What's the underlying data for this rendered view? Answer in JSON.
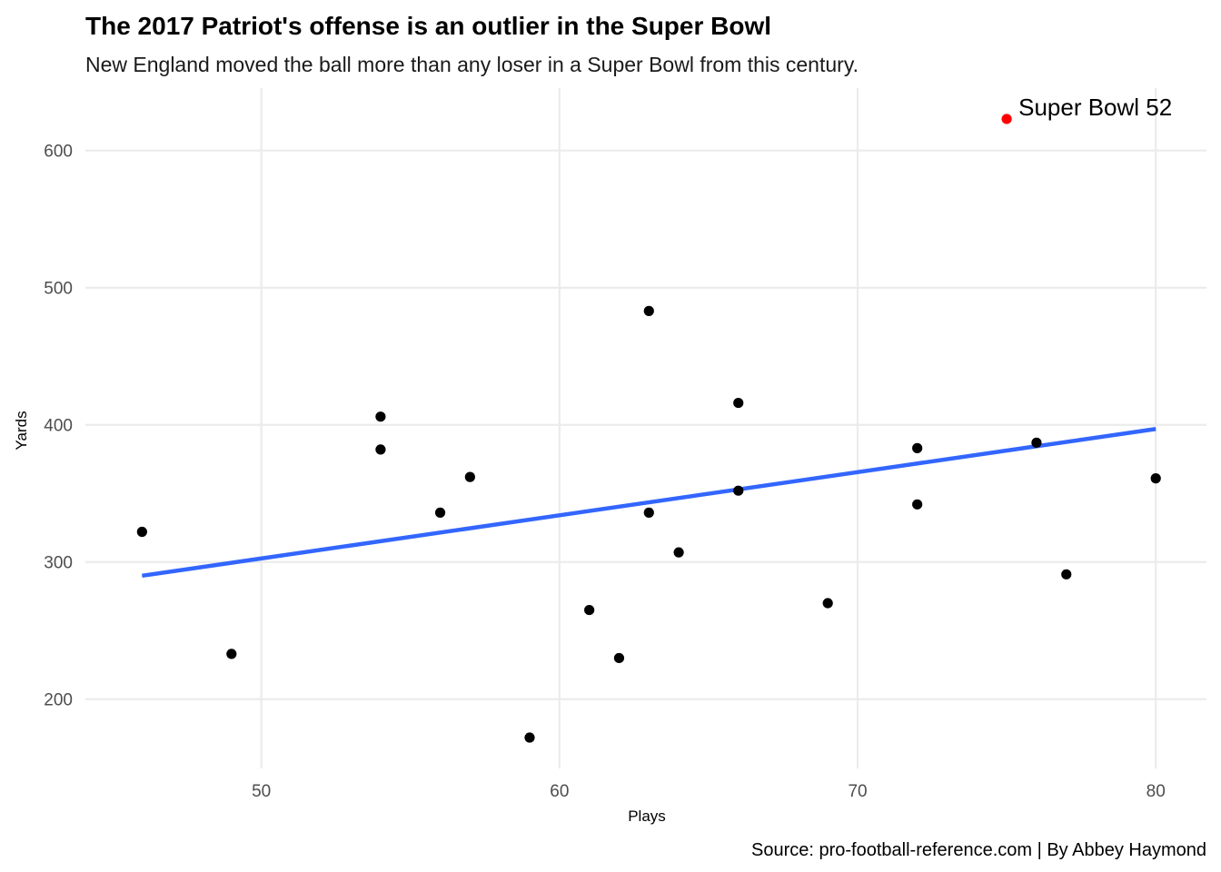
{
  "chart_data": {
    "type": "scatter",
    "title": "The 2017 Patriot's offense is an outlier in the Super Bowl",
    "subtitle": "New England moved the ball more than any loser in a Super Bowl from this century.",
    "xlabel": "Plays",
    "ylabel": "Yards",
    "caption": "Source: pro-football-reference.com | By Abbey Haymond",
    "xlim": [
      44.1,
      81.7
    ],
    "ylim": [
      149.5,
      645.5
    ],
    "x_ticks": [
      50,
      60,
      70,
      80
    ],
    "y_ticks": [
      200,
      300,
      400,
      500,
      600
    ],
    "grid": true,
    "colors": {
      "points": "#000000",
      "highlight": "#ff0000",
      "trend": "#3366ff",
      "grid": "#ebebeb"
    },
    "points": [
      {
        "x": 46,
        "y": 322
      },
      {
        "x": 49,
        "y": 233
      },
      {
        "x": 54,
        "y": 406
      },
      {
        "x": 54,
        "y": 382
      },
      {
        "x": 56,
        "y": 336
      },
      {
        "x": 57,
        "y": 362
      },
      {
        "x": 59,
        "y": 172
      },
      {
        "x": 61,
        "y": 265
      },
      {
        "x": 62,
        "y": 230
      },
      {
        "x": 63,
        "y": 483
      },
      {
        "x": 63,
        "y": 336
      },
      {
        "x": 64,
        "y": 307
      },
      {
        "x": 66,
        "y": 416
      },
      {
        "x": 66,
        "y": 352
      },
      {
        "x": 69,
        "y": 270
      },
      {
        "x": 72,
        "y": 383
      },
      {
        "x": 72,
        "y": 342
      },
      {
        "x": 76,
        "y": 387
      },
      {
        "x": 77,
        "y": 291
      },
      {
        "x": 80,
        "y": 361
      }
    ],
    "highlight": {
      "x": 75,
      "y": 623,
      "label": "Super Bowl 52"
    },
    "trend_line": {
      "x": [
        46,
        80
      ],
      "y": [
        290,
        397
      ]
    }
  }
}
